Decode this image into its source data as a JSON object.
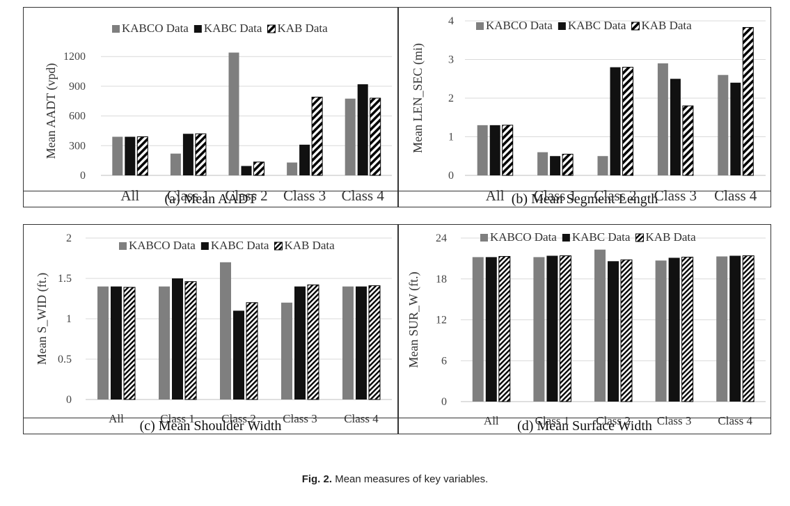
{
  "figure_caption": {
    "label": "Fig. 2.",
    "text": "Mean measures of key variables."
  },
  "colors": {
    "kabco": "#7f7f7f",
    "kabc": "#111111",
    "kab_hatch": "#000000"
  },
  "chart_data": [
    {
      "type": "bar",
      "panel_label": "(a)  Mean AADT",
      "ylabel": "Mean AADT (vpd)",
      "categories": [
        "All",
        "Class 1",
        "Class 2",
        "Class 3",
        "Class 4"
      ],
      "yticks": [
        0,
        300,
        600,
        900,
        1200
      ],
      "ylim": [
        0,
        1300
      ],
      "legend": "top",
      "grid": true,
      "series": [
        {
          "name": "KABCO Data",
          "values": [
            390,
            220,
            1240,
            130,
            775
          ]
        },
        {
          "name": "KABC Data",
          "values": [
            390,
            420,
            95,
            310,
            920
          ]
        },
        {
          "name": "KAB Data",
          "values": [
            390,
            420,
            135,
            790,
            780
          ]
        }
      ]
    },
    {
      "type": "bar",
      "panel_label": "(b)  Mean Segment Length",
      "ylabel": "Mean LEN_SEC (mi)",
      "categories": [
        "All",
        "Class 1",
        "Class 2",
        "Class 3",
        "Class 4"
      ],
      "yticks": [
        0,
        1,
        2,
        3,
        4
      ],
      "ylim": [
        0,
        4
      ],
      "legend": "top",
      "grid": true,
      "series": [
        {
          "name": "KABCO Data",
          "values": [
            1.3,
            0.6,
            0.5,
            2.9,
            2.6
          ]
        },
        {
          "name": "KABC Data",
          "values": [
            1.3,
            0.5,
            2.8,
            2.5,
            2.4
          ]
        },
        {
          "name": "KAB Data",
          "values": [
            1.3,
            0.55,
            2.8,
            1.8,
            3.83
          ]
        }
      ]
    },
    {
      "type": "bar",
      "panel_label": "(c)  Mean Shoulder Width",
      "ylabel": "Mean S_WID (ft.)",
      "categories": [
        "All",
        "Class 1",
        "Class 2",
        "Class 3",
        "Class 4"
      ],
      "yticks": [
        0,
        0.5,
        1,
        1.5,
        2
      ],
      "ylim": [
        0,
        2
      ],
      "legend": "top",
      "grid": true,
      "series": [
        {
          "name": "KABCO Data",
          "values": [
            1.4,
            1.4,
            1.7,
            1.2,
            1.4
          ]
        },
        {
          "name": "KABC Data",
          "values": [
            1.4,
            1.5,
            1.1,
            1.4,
            1.4
          ]
        },
        {
          "name": "KAB Data",
          "values": [
            1.39,
            1.46,
            1.2,
            1.42,
            1.41
          ]
        }
      ]
    },
    {
      "type": "bar",
      "panel_label": "(d)  Mean Surface Width",
      "ylabel": "Mean SUR_W (ft.)",
      "categories": [
        "All",
        "Class 1",
        "Class 2",
        "Class 3",
        "Class 4"
      ],
      "yticks": [
        0,
        6,
        12,
        18,
        24
      ],
      "ylim": [
        0,
        24
      ],
      "legend": "top",
      "grid": true,
      "series": [
        {
          "name": "KABCO Data",
          "values": [
            21.2,
            21.2,
            22.3,
            20.7,
            21.3
          ]
        },
        {
          "name": "KABC Data",
          "values": [
            21.2,
            21.4,
            20.6,
            21.1,
            21.4
          ]
        },
        {
          "name": "KAB Data",
          "values": [
            21.3,
            21.4,
            20.8,
            21.2,
            21.4
          ]
        }
      ]
    }
  ]
}
